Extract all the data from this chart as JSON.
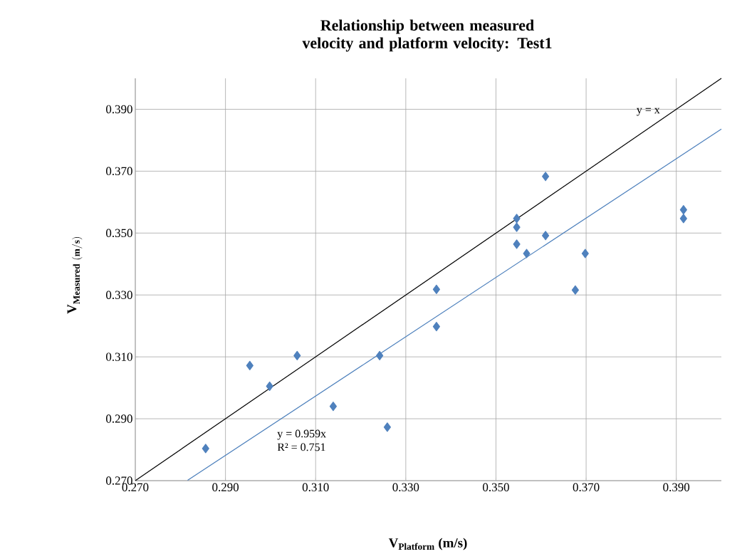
{
  "chart_data": {
    "type": "scatter",
    "title": "Relationship between measured velocity and platform velocity: Test1",
    "xlabel": "V$_{Platform}$ (m/s)",
    "ylabel": "\\mathbf{V_{Measured\\ (m/s)}}",
    "xlim": [
      0.27,
      0.4
    ],
    "ylim": [
      0.27,
      0.4
    ],
    "xticks": [
      {
        "value": 0.27,
        "label": "0.270"
      },
      {
        "value": 0.29,
        "label": "0.290"
      },
      {
        "value": 0.31,
        "label": "0.310"
      },
      {
        "value": 0.33,
        "label": "0.330"
      },
      {
        "value": 0.35,
        "label": "0.350"
      },
      {
        "value": 0.37,
        "label": "0.370"
      },
      {
        "value": 0.39,
        "label": "0.390"
      }
    ],
    "yticks": [
      {
        "value": 0.27,
        "label": "0.270"
      },
      {
        "value": 0.29,
        "label": "0.290"
      },
      {
        "value": 0.31,
        "label": "0.310"
      },
      {
        "value": 0.33,
        "label": "0.330"
      },
      {
        "value": 0.35,
        "label": "0.350"
      },
      {
        "value": 0.37,
        "label": "0.370"
      },
      {
        "value": 0.39,
        "label": "0.390"
      }
    ],
    "grid": true,
    "marker": "diamond",
    "annotations": [
      "R² = 0.751"
    ],
    "series": [
      {
        "color": "#4f81bd",
        "x": [
          0.2856,
          0.2954,
          0.2998,
          0.3059,
          0.3139,
          0.3242,
          0.3259,
          0.3368,
          0.3368,
          0.3546,
          0.3546,
          0.3546,
          0.3568,
          0.361,
          0.361,
          0.3676,
          0.3698,
          0.3916,
          0.3916
        ],
        "values": [
          0.2804,
          0.3072,
          0.3005,
          0.3104,
          0.294,
          0.3104,
          0.2873,
          0.3318,
          0.3198,
          0.3547,
          0.3519,
          0.3464,
          0.3434,
          0.3492,
          0.3683,
          0.3316,
          0.3434,
          0.3575,
          0.3547
        ]
      },
      {
        "type": "line",
        "name": "y = x",
        "color": "#000000",
        "marker": "none",
        "x": [
          0.27,
          0.4
        ],
        "values": [
          0.27,
          0.4
        ]
      },
      {
        "type": "line",
        "name": "y = 0.959x",
        "color": "#4a7ebb",
        "marker": "none",
        "x": [
          0.2816,
          0.4
        ],
        "values": [
          0.2701,
          0.3836
        ]
      }
    ]
  }
}
